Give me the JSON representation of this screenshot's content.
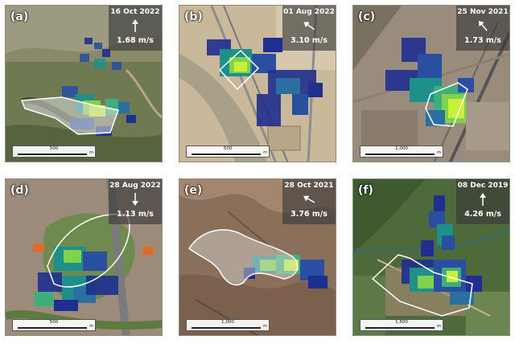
{
  "panels": [
    {
      "label": "(a)",
      "date": "16 Oct 2022",
      "speed": "1.68 m/s",
      "scale": "500",
      "unit": "m",
      "arrow_angle": 0
    },
    {
      "label": "(b)",
      "date": "01 Aug 2022",
      "speed": "3.10 m/s",
      "scale": "500",
      "unit": "m",
      "arrow_angle": -55
    },
    {
      "label": "(c)",
      "date": "25 Nov 2021",
      "speed": "1.73 m/s",
      "scale": "1,000",
      "unit": "m",
      "arrow_angle": -40
    },
    {
      "label": "(d)",
      "date": "28 Aug 2022",
      "speed": "1.13 m/s",
      "scale": "500",
      "unit": "m",
      "arrow_angle": 180
    },
    {
      "label": "(e)",
      "date": "28 Oct 2021",
      "speed": "3.76 m/s",
      "scale": "1,000",
      "unit": "m",
      "arrow_angle": -60
    },
    {
      "label": "(f)",
      "date": "08 Dec 2019",
      "speed": "4.26 m/s",
      "scale": "1,500",
      "unit": "m",
      "arrow_angle": 0
    }
  ],
  "colors": {
    "plume_low": "#1f2f8f",
    "plume_mid": "#1f8f8a",
    "plume_high": "#c8f03a",
    "outline": "#ffffff"
  }
}
